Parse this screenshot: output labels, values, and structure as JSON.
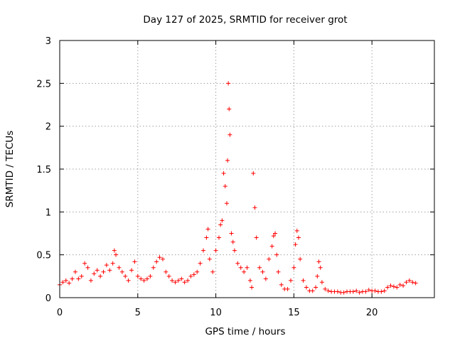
{
  "chart_data": {
    "type": "scatter",
    "title": "Day 127 of 2025, SRMTID for receiver grot",
    "xlabel": "GPS time / hours",
    "ylabel": "SRMTID / TECUs",
    "xlim": [
      0,
      24
    ],
    "ylim": [
      0,
      3
    ],
    "x_ticks": [
      0,
      5,
      10,
      15,
      20
    ],
    "x_tick_labels": [
      "0",
      "5",
      "10",
      "15",
      "20"
    ],
    "y_ticks": [
      0,
      0.5,
      1,
      1.5,
      2,
      2.5,
      3
    ],
    "y_tick_labels": [
      "0",
      "0.5",
      "1",
      "1.5",
      "2",
      "2.5",
      "3"
    ],
    "grid": true,
    "marker": "+",
    "color": "#ff0000",
    "series": [
      {
        "name": "SRMTID",
        "x": [
          0.0,
          0.2,
          0.4,
          0.6,
          0.8,
          1.0,
          1.2,
          1.4,
          1.6,
          1.8,
          2.0,
          2.2,
          2.4,
          2.6,
          2.8,
          3.0,
          3.2,
          3.4,
          3.5,
          3.6,
          3.8,
          4.0,
          4.2,
          4.4,
          4.6,
          4.8,
          5.0,
          5.2,
          5.4,
          5.6,
          5.8,
          6.0,
          6.2,
          6.4,
          6.6,
          6.8,
          7.0,
          7.2,
          7.4,
          7.6,
          7.8,
          8.0,
          8.2,
          8.4,
          8.6,
          8.8,
          9.0,
          9.2,
          9.4,
          9.5,
          9.6,
          9.8,
          10.0,
          10.2,
          10.3,
          10.4,
          10.5,
          10.6,
          10.7,
          10.75,
          10.8,
          10.85,
          10.9,
          11.0,
          11.1,
          11.2,
          11.4,
          11.6,
          11.8,
          12.0,
          12.2,
          12.3,
          12.4,
          12.5,
          12.6,
          12.8,
          13.0,
          13.2,
          13.4,
          13.6,
          13.7,
          13.8,
          13.9,
          14.0,
          14.2,
          14.4,
          14.6,
          14.8,
          15.0,
          15.1,
          15.2,
          15.3,
          15.4,
          15.6,
          15.8,
          16.0,
          16.2,
          16.4,
          16.5,
          16.6,
          16.7,
          16.8,
          17.0,
          17.2,
          17.4,
          17.6,
          17.8,
          18.0,
          18.2,
          18.4,
          18.6,
          18.8,
          19.0,
          19.2,
          19.4,
          19.6,
          19.8,
          20.0,
          20.2,
          20.4,
          20.6,
          20.8,
          21.0,
          21.2,
          21.4,
          21.6,
          21.8,
          22.0,
          22.2,
          22.4,
          22.6,
          22.8
        ],
        "y": [
          0.15,
          0.18,
          0.2,
          0.17,
          0.22,
          0.3,
          0.22,
          0.25,
          0.4,
          0.35,
          0.2,
          0.28,
          0.32,
          0.25,
          0.3,
          0.38,
          0.32,
          0.4,
          0.55,
          0.5,
          0.35,
          0.3,
          0.25,
          0.2,
          0.32,
          0.42,
          0.25,
          0.22,
          0.2,
          0.22,
          0.25,
          0.35,
          0.42,
          0.47,
          0.45,
          0.3,
          0.25,
          0.2,
          0.18,
          0.2,
          0.22,
          0.18,
          0.2,
          0.25,
          0.27,
          0.3,
          0.4,
          0.55,
          0.7,
          0.8,
          0.45,
          0.3,
          0.55,
          0.7,
          0.85,
          0.9,
          1.45,
          1.3,
          1.1,
          1.6,
          2.5,
          2.2,
          1.9,
          0.75,
          0.65,
          0.55,
          0.4,
          0.35,
          0.3,
          0.35,
          0.2,
          0.12,
          1.45,
          1.05,
          0.7,
          0.35,
          0.3,
          0.22,
          0.45,
          0.6,
          0.72,
          0.75,
          0.5,
          0.3,
          0.15,
          0.1,
          0.1,
          0.2,
          0.35,
          0.62,
          0.78,
          0.7,
          0.45,
          0.2,
          0.12,
          0.08,
          0.08,
          0.12,
          0.25,
          0.42,
          0.35,
          0.18,
          0.1,
          0.08,
          0.07,
          0.07,
          0.07,
          0.06,
          0.06,
          0.07,
          0.07,
          0.07,
          0.08,
          0.06,
          0.07,
          0.07,
          0.09,
          0.08,
          0.08,
          0.07,
          0.07,
          0.08,
          0.12,
          0.14,
          0.13,
          0.12,
          0.15,
          0.14,
          0.18,
          0.2,
          0.18,
          0.17
        ]
      }
    ]
  }
}
